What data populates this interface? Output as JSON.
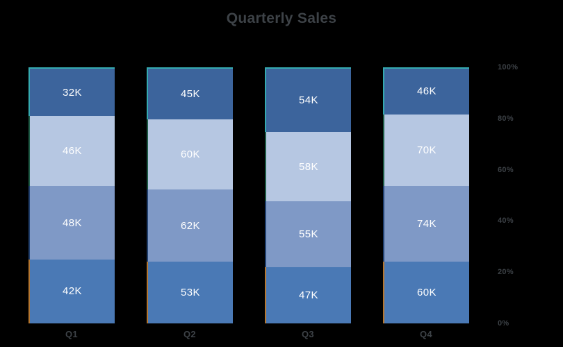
{
  "title": "Quarterly Sales",
  "colors": {
    "background": "#000000",
    "axis_text": "#3d4247",
    "value_label_text": "#ffffff"
  },
  "chart_data": {
    "type": "bar",
    "variant": "stacked-100-percent",
    "title": "Quarterly Sales",
    "categories": [
      "Q1",
      "Q2",
      "Q3",
      "Q4"
    ],
    "series": [
      {
        "name": "bottom-segment",
        "color": "#4a79b5",
        "border_color": "#b5762f",
        "values": [
          42,
          53,
          47,
          60
        ]
      },
      {
        "name": "lower-middle-segment",
        "color": "#7f99c6",
        "border_color": "#21406e",
        "values": [
          48,
          62,
          55,
          74
        ]
      },
      {
        "name": "upper-middle-segment",
        "color": "#b6c7e2",
        "border_color": "#1d5a44",
        "values": [
          46,
          60,
          58,
          70
        ]
      },
      {
        "name": "top-segment",
        "color": "#3c649c",
        "border_color": "#35aab0",
        "values": [
          32,
          45,
          54,
          46
        ]
      }
    ],
    "value_suffix": "K",
    "xlabel": "",
    "ylabel": "",
    "ylim": [
      0,
      100
    ],
    "y_axis": {
      "position": "right",
      "tick_labels_top_to_bottom": [
        "100%",
        "80%",
        "60%",
        "40%",
        "20%",
        "0%"
      ]
    },
    "grid": false,
    "legend": "none"
  }
}
